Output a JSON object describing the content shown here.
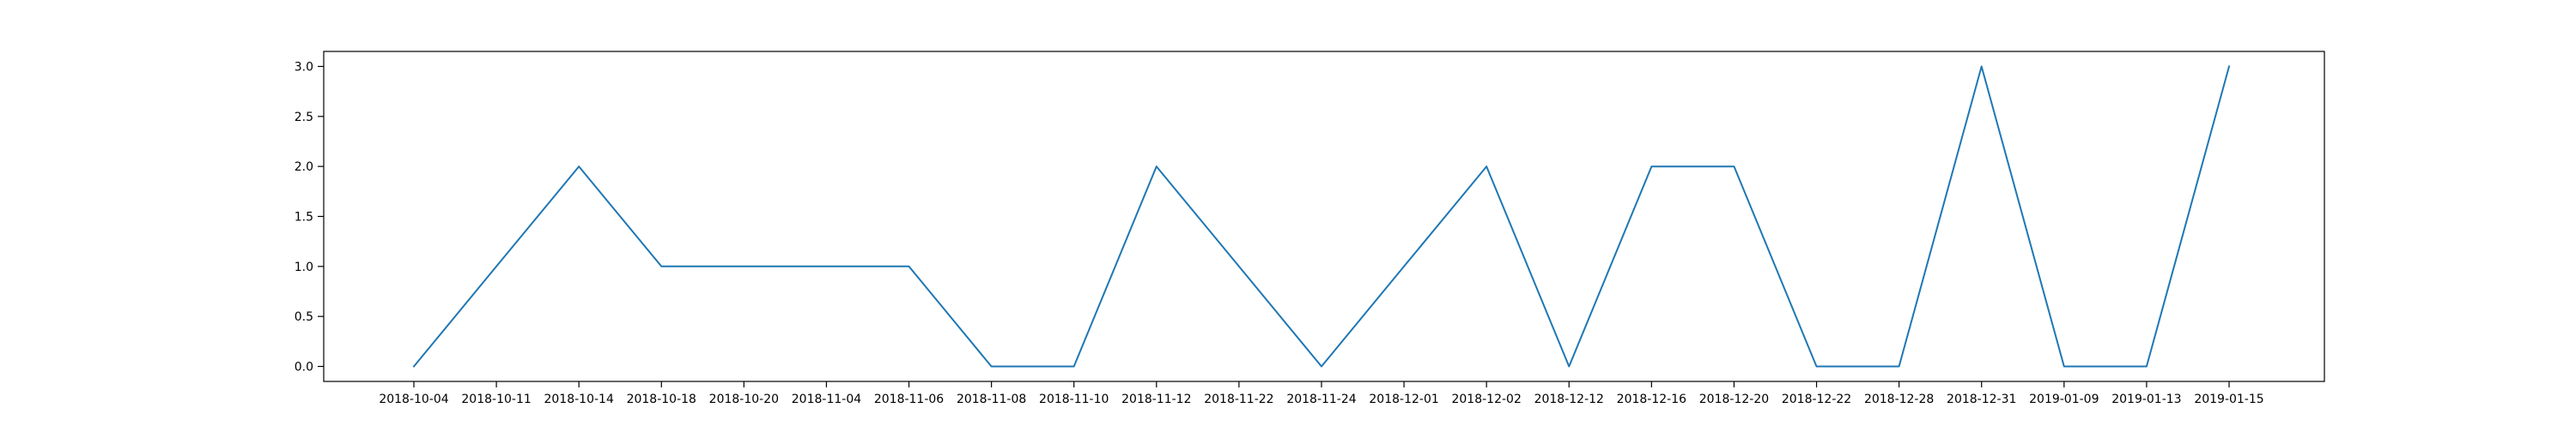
{
  "chart_data": {
    "type": "line",
    "title": "",
    "xlabel": "",
    "ylabel": "",
    "categories": [
      "2018-10-04",
      "2018-10-11",
      "2018-10-14",
      "2018-10-18",
      "2018-10-20",
      "2018-11-04",
      "2018-11-06",
      "2018-11-08",
      "2018-11-10",
      "2018-11-12",
      "2018-11-22",
      "2018-11-24",
      "2018-12-01",
      "2018-12-02",
      "2018-12-12",
      "2018-12-16",
      "2018-12-20",
      "2018-12-22",
      "2018-12-28",
      "2018-12-31",
      "2019-01-09",
      "2019-01-13",
      "2019-01-15"
    ],
    "series": [
      {
        "values": [
          0,
          1,
          2,
          1,
          1,
          1,
          1,
          0,
          0,
          2,
          1,
          0,
          1,
          2,
          0,
          2,
          2,
          0,
          0,
          3,
          0,
          0,
          3
        ],
        "color": "#1f77b4"
      }
    ],
    "ylim": [
      -0.15,
      3.15
    ],
    "yticks": [
      0.0,
      0.5,
      1.0,
      1.5,
      2.0,
      2.5,
      3.0
    ],
    "ytick_labels": [
      "0.0",
      "0.5",
      "1.0",
      "1.5",
      "2.0",
      "2.5",
      "3.0"
    ],
    "grid": false,
    "legend": "none"
  }
}
